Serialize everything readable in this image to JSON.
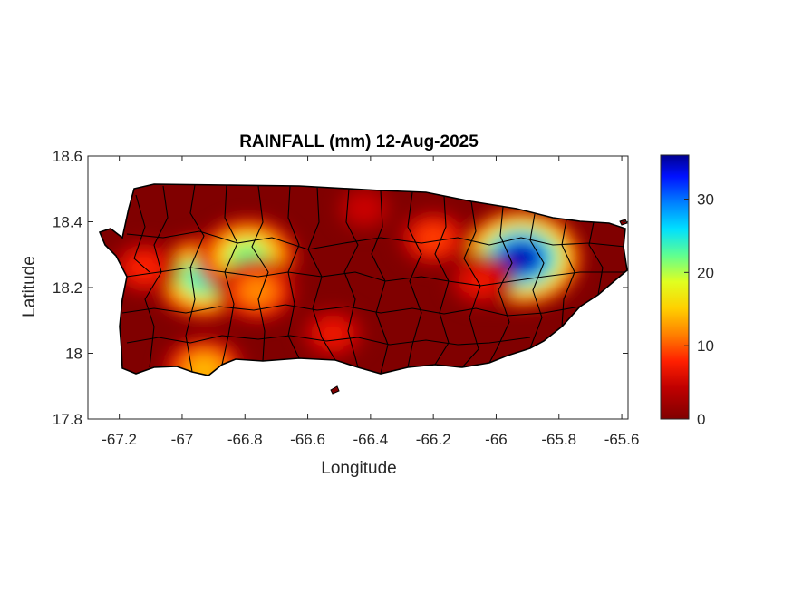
{
  "chart_data": {
    "type": "heatmap",
    "title": "RAINFALL (mm) 12-Aug-2025",
    "xlabel": "Longitude",
    "ylabel": "Latitude",
    "xlim": [
      -67.3,
      -65.58
    ],
    "ylim": [
      17.8,
      18.6
    ],
    "xticks": [
      -67.2,
      -67,
      -66.8,
      -66.6,
      -66.4,
      -66.2,
      -66,
      -65.8,
      -65.6
    ],
    "xtick_labels": [
      "-67.2",
      "-67",
      "-66.8",
      "-66.6",
      "-66.4",
      "-66.2",
      "-66",
      "-65.8",
      "-65.6"
    ],
    "yticks": [
      17.8,
      18,
      18.2,
      18.4,
      18.6
    ],
    "ytick_labels": [
      "17.8",
      "18",
      "18.2",
      "18.4",
      "18.6"
    ],
    "colorbar": {
      "colormap": "jet",
      "reversed_low_end": "dark red",
      "range": [
        0,
        36
      ],
      "ticks": [
        0,
        10,
        20,
        30
      ],
      "tick_labels": [
        "0",
        "10",
        "20",
        "30"
      ]
    },
    "background_value_mm": 0,
    "rain_cells": [
      {
        "lon": -66.93,
        "lat": 18.23,
        "peak_mm": 24
      },
      {
        "lon": -66.79,
        "lat": 18.29,
        "peak_mm": 22
      },
      {
        "lon": -66.76,
        "lat": 18.19,
        "peak_mm": 12
      },
      {
        "lon": -65.92,
        "lat": 18.29,
        "peak_mm": 35
      },
      {
        "lon": -66.93,
        "lat": 17.95,
        "peak_mm": 14
      },
      {
        "lon": -67.12,
        "lat": 18.26,
        "peak_mm": 8
      },
      {
        "lon": -66.52,
        "lat": 18.06,
        "peak_mm": 7
      },
      {
        "lon": -66.2,
        "lat": 18.35,
        "peak_mm": 9
      },
      {
        "lon": -66.05,
        "lat": 18.22,
        "peak_mm": 7
      },
      {
        "lon": -66.42,
        "lat": 18.44,
        "peak_mm": 5
      }
    ]
  }
}
